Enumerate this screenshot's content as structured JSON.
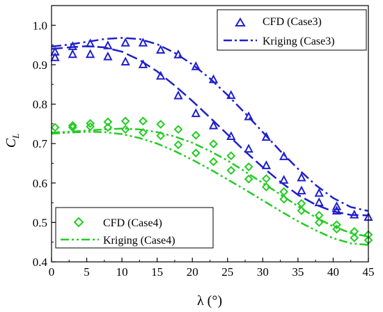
{
  "chart_data": {
    "type": "scatter",
    "xlabel": "λ (°)",
    "ylabel_main": "C",
    "ylabel_sub": "L",
    "xlim": [
      0,
      45
    ],
    "ylim": [
      0.4,
      1.05
    ],
    "xticks": [
      0,
      5,
      10,
      15,
      20,
      25,
      30,
      35,
      40,
      45
    ],
    "yticks": [
      0.4,
      0.5,
      0.6,
      0.7,
      0.8,
      0.9,
      1.0
    ],
    "xtick_labels": [
      "0",
      "5",
      "10",
      "15",
      "20",
      "25",
      "30",
      "35",
      "40",
      "45"
    ],
    "ytick_labels": [
      "0.4",
      "0.5",
      "0.6",
      "0.7",
      "0.8",
      "0.9",
      "1.0"
    ],
    "grid": false,
    "legends": [
      {
        "placement": "top-right",
        "entries": [
          {
            "label": "CFD (Case3)",
            "marker": "triangle",
            "color": "#1f1fcc"
          },
          {
            "label": "Kriging (Case3)",
            "line": "dash-dot",
            "color": "#1f1fcc"
          }
        ]
      },
      {
        "placement": "bottom-left",
        "entries": [
          {
            "label": "CFD (Case4)",
            "marker": "diamond",
            "color": "#22cc22"
          },
          {
            "label": "Kriging (Case4)",
            "line": "dash-dot-dot",
            "color": "#22cc22"
          }
        ]
      }
    ],
    "series": [
      {
        "name": "CFD (Case3)",
        "kind": "scatter",
        "marker": "triangle",
        "color": "#1f1fcc",
        "points": [
          [
            0.5,
            0.932
          ],
          [
            3,
            0.946
          ],
          [
            5.5,
            0.953
          ],
          [
            8,
            0.948
          ],
          [
            10.5,
            0.955
          ],
          [
            13,
            0.955
          ],
          [
            15.5,
            0.937
          ],
          [
            18,
            0.925
          ],
          [
            20.5,
            0.895
          ],
          [
            23,
            0.862
          ],
          [
            25.5,
            0.822
          ],
          [
            28,
            0.768
          ],
          [
            30.5,
            0.716
          ],
          [
            33,
            0.667
          ],
          [
            35.5,
            0.613
          ],
          [
            38,
            0.574
          ],
          [
            40.5,
            0.54
          ],
          [
            43,
            0.519
          ],
          [
            45,
            0.513
          ],
          [
            0.5,
            0.918
          ],
          [
            3,
            0.926
          ],
          [
            5.5,
            0.926
          ],
          [
            8,
            0.92
          ],
          [
            10.5,
            0.907
          ],
          [
            13,
            0.9
          ],
          [
            15.5,
            0.871
          ],
          [
            18,
            0.821
          ],
          [
            20.5,
            0.776
          ],
          [
            23,
            0.745
          ],
          [
            25.5,
            0.718
          ],
          [
            28,
            0.686
          ],
          [
            30.5,
            0.644
          ],
          [
            33,
            0.607
          ],
          [
            35.5,
            0.58
          ],
          [
            38,
            0.55
          ],
          [
            40.5,
            0.529
          ]
        ]
      },
      {
        "name": "Kriging (Case3)",
        "kind": "line",
        "dash": "dash-dot",
        "color": "#1f1fcc",
        "points": [
          [
            0,
            0.946
          ],
          [
            2.5,
            0.951
          ],
          [
            5,
            0.958
          ],
          [
            7.5,
            0.965
          ],
          [
            10,
            0.968
          ],
          [
            12.5,
            0.965
          ],
          [
            15,
            0.952
          ],
          [
            17.5,
            0.93
          ],
          [
            20,
            0.901
          ],
          [
            22.5,
            0.865
          ],
          [
            25,
            0.823
          ],
          [
            27.5,
            0.777
          ],
          [
            30,
            0.729
          ],
          [
            32.5,
            0.681
          ],
          [
            35,
            0.636
          ],
          [
            37.5,
            0.595
          ],
          [
            40,
            0.562
          ],
          [
            42.5,
            0.539
          ],
          [
            45,
            0.529
          ]
        ]
      },
      {
        "name": "",
        "kind": "line",
        "dash": "long-dash",
        "color": "#1f1fcc",
        "points": [
          [
            0,
            0.94
          ],
          [
            2.5,
            0.944
          ],
          [
            5,
            0.947
          ],
          [
            7.5,
            0.944
          ],
          [
            10,
            0.933
          ],
          [
            12.5,
            0.912
          ],
          [
            15,
            0.883
          ],
          [
            17.5,
            0.847
          ],
          [
            20,
            0.808
          ],
          [
            22.5,
            0.766
          ],
          [
            25,
            0.723
          ],
          [
            27.5,
            0.68
          ],
          [
            30,
            0.64
          ],
          [
            32.5,
            0.603
          ],
          [
            35,
            0.57
          ],
          [
            37.5,
            0.545
          ],
          [
            40,
            0.528
          ],
          [
            42.5,
            0.519
          ],
          [
            45,
            0.518
          ]
        ]
      },
      {
        "name": "CFD (Case4)",
        "kind": "scatter",
        "marker": "diamond",
        "color": "#22cc22",
        "points": [
          [
            0.5,
            0.741
          ],
          [
            3,
            0.746
          ],
          [
            5.5,
            0.751
          ],
          [
            8,
            0.755
          ],
          [
            10.5,
            0.757
          ],
          [
            13,
            0.757
          ],
          [
            15.5,
            0.749
          ],
          [
            18,
            0.736
          ],
          [
            20.5,
            0.721
          ],
          [
            23,
            0.699
          ],
          [
            25.5,
            0.669
          ],
          [
            28,
            0.641
          ],
          [
            30.5,
            0.611
          ],
          [
            33,
            0.578
          ],
          [
            35.5,
            0.548
          ],
          [
            38,
            0.518
          ],
          [
            40.5,
            0.494
          ],
          [
            43,
            0.477
          ],
          [
            45,
            0.469
          ],
          [
            3,
            0.741
          ],
          [
            5.5,
            0.743
          ],
          [
            8,
            0.741
          ],
          [
            10.5,
            0.736
          ],
          [
            13,
            0.728
          ],
          [
            15.5,
            0.72
          ],
          [
            18,
            0.697
          ],
          [
            20.5,
            0.676
          ],
          [
            23,
            0.654
          ],
          [
            25.5,
            0.632
          ],
          [
            28,
            0.61
          ],
          [
            30.5,
            0.59
          ],
          [
            33,
            0.559
          ],
          [
            35.5,
            0.53
          ],
          [
            38,
            0.5
          ],
          [
            40.5,
            0.483
          ],
          [
            43,
            0.461
          ],
          [
            45,
            0.455
          ]
        ]
      },
      {
        "name": "Kriging (Case4)",
        "kind": "line",
        "dash": "dash-dot-dot",
        "color": "#22cc22",
        "points": [
          [
            0,
            0.728
          ],
          [
            2.5,
            0.73
          ],
          [
            5,
            0.733
          ],
          [
            7.5,
            0.736
          ],
          [
            10,
            0.738
          ],
          [
            12.5,
            0.736
          ],
          [
            15,
            0.729
          ],
          [
            17.5,
            0.718
          ],
          [
            20,
            0.702
          ],
          [
            22.5,
            0.681
          ],
          [
            25,
            0.657
          ],
          [
            27.5,
            0.629
          ],
          [
            30,
            0.6
          ],
          [
            32.5,
            0.571
          ],
          [
            35,
            0.541
          ],
          [
            37.5,
            0.513
          ],
          [
            40,
            0.49
          ],
          [
            42.5,
            0.473
          ],
          [
            45,
            0.464
          ]
        ]
      },
      {
        "name": "",
        "kind": "line",
        "dash": "dash-dot-dot",
        "color": "#22cc22",
        "points": [
          [
            0,
            0.725
          ],
          [
            2.5,
            0.728
          ],
          [
            5,
            0.73
          ],
          [
            7.5,
            0.729
          ],
          [
            10,
            0.724
          ],
          [
            12.5,
            0.714
          ],
          [
            15,
            0.7
          ],
          [
            17.5,
            0.681
          ],
          [
            20,
            0.659
          ],
          [
            22.5,
            0.635
          ],
          [
            25,
            0.609
          ],
          [
            27.5,
            0.583
          ],
          [
            30,
            0.556
          ],
          [
            32.5,
            0.529
          ],
          [
            35,
            0.503
          ],
          [
            37.5,
            0.48
          ],
          [
            40,
            0.46
          ],
          [
            42.5,
            0.447
          ],
          [
            45,
            0.443
          ]
        ]
      }
    ]
  }
}
